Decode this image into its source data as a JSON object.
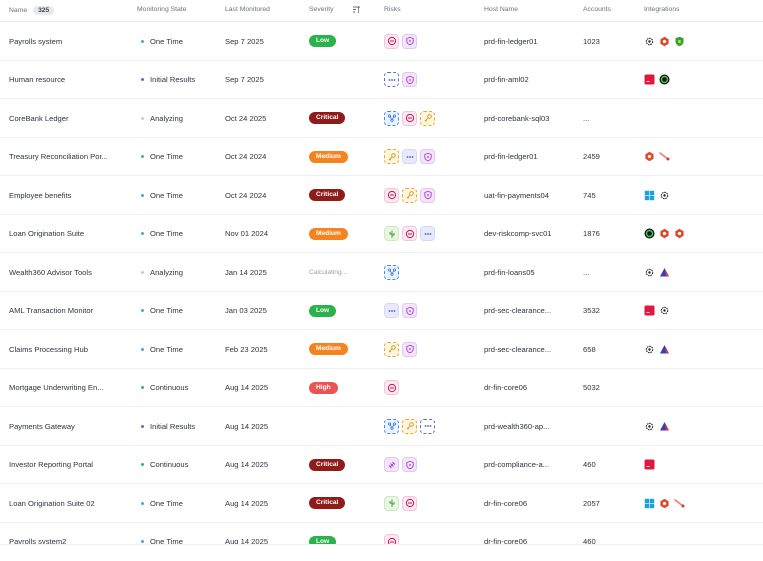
{
  "header": {
    "name": "Name",
    "count": "325",
    "monitoring_state": "Monitoring State",
    "last_monitored": "Last Monitored",
    "severity": "Severity",
    "risks": "Risks",
    "host_name": "Host Name",
    "accounts": "Accounts",
    "integrations": "Integrations"
  },
  "colors": {
    "low": "#2bb24c",
    "medium": "#f5831f",
    "critical": "#8f1b1b",
    "high": "#e85555",
    "state_one_time": "#4fa3dc",
    "state_initial": "#7a5cd6",
    "state_analyzing": "#c7ccd4",
    "state_continuous": "#3bb07a"
  },
  "rows": [
    {
      "name": "Payrolls system",
      "state": "One Time",
      "state_key": "one_time",
      "date": "Sep 7 2025",
      "severity": "Low",
      "sev_key": "low",
      "risks": [
        "pink-mask",
        "violet-shield"
      ],
      "host": "prd-fin-ledger01",
      "accounts": "1023",
      "integrations": [
        "openai-icon",
        "red-hex-icon",
        "green-shield-icon"
      ]
    },
    {
      "name": "Human resource",
      "state": "Initial Results",
      "state_key": "initial",
      "date": "Sep 7 2025",
      "severity": "",
      "sev_key": "",
      "risks": [
        "dots",
        "violet-shield"
      ],
      "host": "prd-fin-aml02",
      "accounts": "",
      "integrations": [
        "red-square-icon",
        "green-circle-icon"
      ]
    },
    {
      "name": "CoreBank Ledger",
      "state": "Analyzing",
      "state_key": "analyzing",
      "date": "Oct 24 2025",
      "severity": "Critical",
      "sev_key": "critical",
      "risks": [
        "blue-network",
        "pink-mask",
        "amber-key"
      ],
      "host": "prd-corebank-sql03",
      "accounts": "...",
      "integrations": []
    },
    {
      "name": "Treasury Reconciliation Por...",
      "state": "One Time",
      "state_key": "one_time",
      "date": "Oct 24 2024",
      "severity": "Medium",
      "sev_key": "medium",
      "risks": [
        "amber-key",
        "dots-solid",
        "violet-shield"
      ],
      "host": "prd-fin-ledger01",
      "accounts": "2459",
      "integrations": [
        "red-hex-icon",
        "comet-icon"
      ]
    },
    {
      "name": "Employee benefits",
      "state": "One Time",
      "state_key": "one_time",
      "date": "Oct 24 2024",
      "severity": "Critical",
      "sev_key": "critical",
      "risks": [
        "pink-mask",
        "amber-key",
        "violet-shield"
      ],
      "host": "uat-fin-payments04",
      "accounts": "745",
      "integrations": [
        "windows-icon",
        "openai-icon"
      ]
    },
    {
      "name": "Loan Origination Suite",
      "state": "One Time",
      "state_key": "one_time",
      "date": "Nov 01 2024",
      "severity": "Medium",
      "sev_key": "medium",
      "risks": [
        "green-cactus",
        "pink-mask",
        "dots-solid"
      ],
      "host": "dev-riskcomp-svc01",
      "accounts": "1876",
      "integrations": [
        "green-circle-icon",
        "red-hex-icon",
        "red-hex-icon"
      ]
    },
    {
      "name": "Wealth360 Advisor Tools",
      "state": "Analyzing",
      "state_key": "analyzing",
      "date": "Jan 14 2025",
      "severity": "Calculating...",
      "sev_key": "calc",
      "risks": [
        "blue-network"
      ],
      "host": "prd-fin-loans05",
      "accounts": "...",
      "integrations": [
        "openai-icon",
        "pyramid-icon"
      ]
    },
    {
      "name": "AML Transaction Monitor",
      "state": "One Time",
      "state_key": "one_time",
      "date": "Jan 03 2025",
      "severity": "Low",
      "sev_key": "low",
      "risks": [
        "dots-solid",
        "violet-shield"
      ],
      "host": "prd-sec-clearance...",
      "accounts": "3532",
      "integrations": [
        "red-square-icon",
        "openai-icon"
      ]
    },
    {
      "name": "Claims Processing Hub",
      "state": "One Time",
      "state_key": "one_time",
      "date": "Feb 23 2025",
      "severity": "Medium",
      "sev_key": "medium",
      "risks": [
        "amber-key",
        "violet-shield"
      ],
      "host": "prd-sec-clearance...",
      "accounts": "658",
      "integrations": [
        "openai-icon",
        "pyramid-icon"
      ]
    },
    {
      "name": "Mortgage Underwriting En...",
      "state": "Continuous",
      "state_key": "continuous",
      "date": "Aug 14 2025",
      "severity": "High",
      "sev_key": "high",
      "risks": [
        "pink-mask"
      ],
      "host": "dr-fin-core06",
      "accounts": "5032",
      "integrations": []
    },
    {
      "name": "Payments Gateway",
      "state": "Initial Results",
      "state_key": "initial",
      "date": "Aug 14 2025",
      "severity": "",
      "sev_key": "",
      "risks": [
        "blue-network",
        "amber-key",
        "dots"
      ],
      "host": "prd-wealth360-ap...",
      "accounts": "",
      "integrations": [
        "openai-icon",
        "pyramid-icon"
      ]
    },
    {
      "name": "Investor Reporting Portal",
      "state": "Continuous",
      "state_key": "continuous",
      "date": "Aug 14 2025",
      "severity": "Critical",
      "sev_key": "critical",
      "risks": [
        "violet-plug",
        "violet-shield"
      ],
      "host": "prd-compliance-a...",
      "accounts": "460",
      "integrations": [
        "red-square-icon"
      ]
    },
    {
      "name": "Loan Origination Suite 02",
      "state": "One Time",
      "state_key": "one_time",
      "date": "Aug 14 2025",
      "severity": "Critical",
      "sev_key": "critical",
      "risks": [
        "green-cactus",
        "pink-mask"
      ],
      "host": "dr-fin-core06",
      "accounts": "2057",
      "integrations": [
        "windows-icon",
        "red-hex-icon",
        "comet-icon"
      ]
    },
    {
      "name": "Payrolls system2",
      "state": "One Time",
      "state_key": "one_time",
      "date": "Aug 14 2025",
      "severity": "Low",
      "sev_key": "low",
      "risks": [
        "pink-mask"
      ],
      "host": "dr-fin-core06",
      "accounts": "460",
      "integrations": []
    }
  ]
}
